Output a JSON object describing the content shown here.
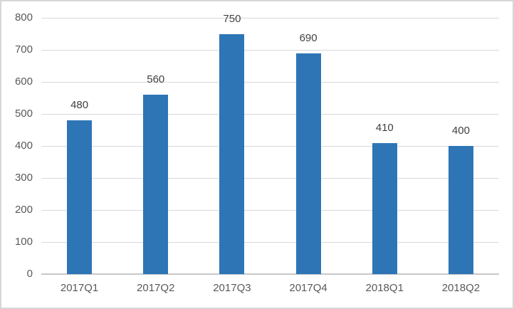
{
  "chart_data": {
    "type": "bar",
    "categories": [
      "2017Q1",
      "2017Q2",
      "2017Q3",
      "2017Q4",
      "2018Q1",
      "2018Q2"
    ],
    "values": [
      480,
      560,
      750,
      690,
      410,
      400
    ],
    "data_labels": [
      "480",
      "560",
      "750",
      "690",
      "410",
      "400"
    ],
    "title": "",
    "xlabel": "",
    "ylabel": "",
    "ylim": [
      0,
      800
    ],
    "yticks": [
      0,
      100,
      200,
      300,
      400,
      500,
      600,
      700,
      800
    ],
    "grid": true,
    "legend": false,
    "data_labels_position": "outside-end",
    "colors": {
      "bar": "#2E75B6",
      "gridline": "#D9D9D9",
      "axis_line": "#C8C8C8",
      "axis_label": "#595959",
      "data_label": "#404040",
      "background": "#FFFFFF",
      "frame_border": "#D6D6D6"
    }
  }
}
